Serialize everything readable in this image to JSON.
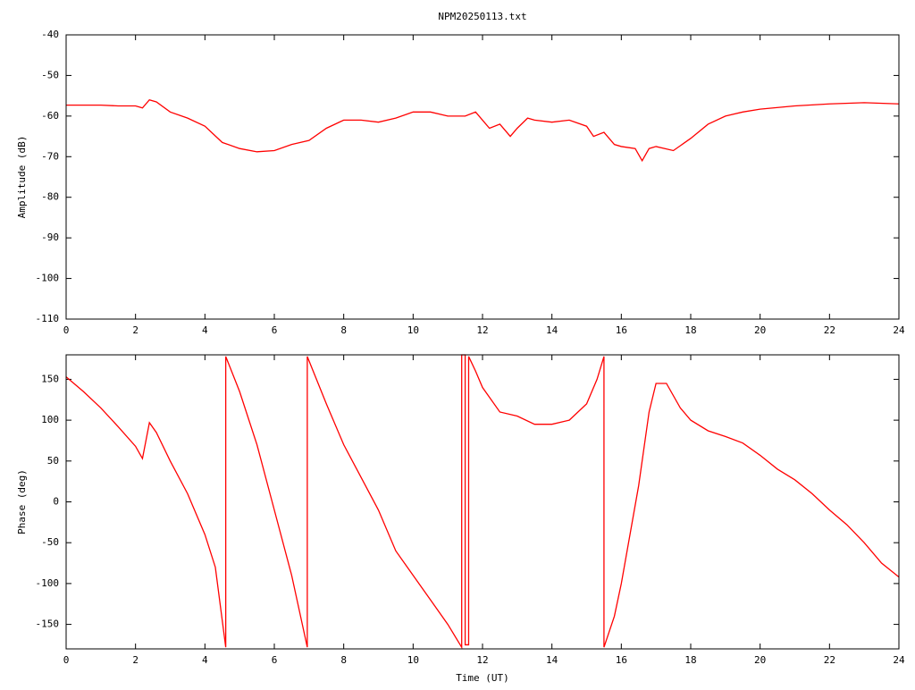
{
  "chart_data": [
    {
      "type": "line",
      "title": "NPM20250113.txt",
      "y_label": "Amplitude (dB)",
      "xlim": [
        0,
        24
      ],
      "xticks": [
        0,
        2,
        4,
        6,
        8,
        10,
        12,
        14,
        16,
        18,
        20,
        22,
        24
      ],
      "ylim": [
        -110,
        -40
      ],
      "yticks": [
        -110,
        -100,
        -90,
        -80,
        -70,
        -60,
        -50,
        -40
      ],
      "series": [
        {
          "color": "#ff0000",
          "x": [
            0,
            0.5,
            1,
            1.5,
            2,
            2.2,
            2.4,
            2.6,
            3,
            3.5,
            4,
            4.5,
            5,
            5.5,
            6,
            6.5,
            7,
            7.5,
            8,
            8.5,
            9,
            9.5,
            10,
            10.5,
            11,
            11.5,
            11.8,
            12,
            12.2,
            12.5,
            12.8,
            13,
            13.3,
            13.5,
            14,
            14.5,
            15,
            15.2,
            15.5,
            15.8,
            16,
            16.4,
            16.6,
            16.8,
            17,
            17.5,
            18,
            18.5,
            19,
            19.5,
            20,
            21,
            22,
            23,
            24
          ],
          "values": [
            -57.3,
            -57.3,
            -57.3,
            -57.5,
            -57.5,
            -58,
            -56,
            -56.5,
            -59,
            -60.5,
            -62.5,
            -66.5,
            -68,
            -68.8,
            -68.5,
            -67,
            -66,
            -63,
            -61,
            -61,
            -61.5,
            -60.5,
            -59,
            -59,
            -60,
            -60,
            -59,
            -61,
            -63,
            -62,
            -65,
            -63,
            -60.5,
            -61,
            -61.5,
            -61,
            -62.5,
            -65,
            -64,
            -67,
            -67.5,
            -68,
            -71,
            -68,
            -67.5,
            -68.5,
            -65.5,
            -62,
            -60,
            -59,
            -58.3,
            -57.5,
            -57,
            -56.7,
            -57
          ]
        }
      ]
    },
    {
      "type": "line",
      "x_label": "Time (UT)",
      "y_label": "Phase (deg)",
      "xlim": [
        0,
        24
      ],
      "xticks": [
        0,
        2,
        4,
        6,
        8,
        10,
        12,
        14,
        16,
        18,
        20,
        22,
        24
      ],
      "ylim": [
        -180,
        180
      ],
      "yticks": [
        -150,
        -100,
        -50,
        0,
        50,
        100,
        150
      ],
      "series": [
        {
          "color": "#ff0000",
          "x": [
            0,
            0.5,
            1,
            1.5,
            2,
            2.2,
            2.3,
            2.4,
            2.6,
            3,
            3.5,
            4,
            4.3,
            4.6,
            4.6,
            5,
            5.5,
            6,
            6.5,
            6.95,
            6.95,
            7.5,
            8,
            8.5,
            9,
            9.5,
            10,
            10.5,
            11,
            11.4,
            11.4,
            11.5,
            11.5,
            11.6,
            11.6,
            11.8,
            12,
            12.5,
            13,
            13.5,
            14,
            14.5,
            15,
            15.3,
            15.5,
            15.5,
            15.8,
            16,
            16.5,
            16.8,
            17,
            17.3,
            17.7,
            18,
            18.5,
            19,
            19.5,
            20,
            20.5,
            21,
            21.5,
            22,
            22.5,
            23,
            23.5,
            24
          ],
          "values": [
            153,
            135,
            115,
            92,
            68,
            53,
            75,
            97,
            85,
            50,
            10,
            -40,
            -80,
            -178,
            178,
            135,
            70,
            -10,
            -90,
            -178,
            178,
            120,
            70,
            30,
            -10,
            -60,
            -90,
            -120,
            -150,
            -178,
            180,
            180,
            -175,
            -175,
            178,
            160,
            140,
            110,
            105,
            95,
            95,
            100,
            120,
            150,
            178,
            -178,
            -140,
            -100,
            20,
            110,
            145,
            145,
            115,
            100,
            87,
            80,
            72,
            57,
            40,
            27,
            10,
            -10,
            -28,
            -50,
            -75,
            -92
          ]
        }
      ]
    }
  ]
}
